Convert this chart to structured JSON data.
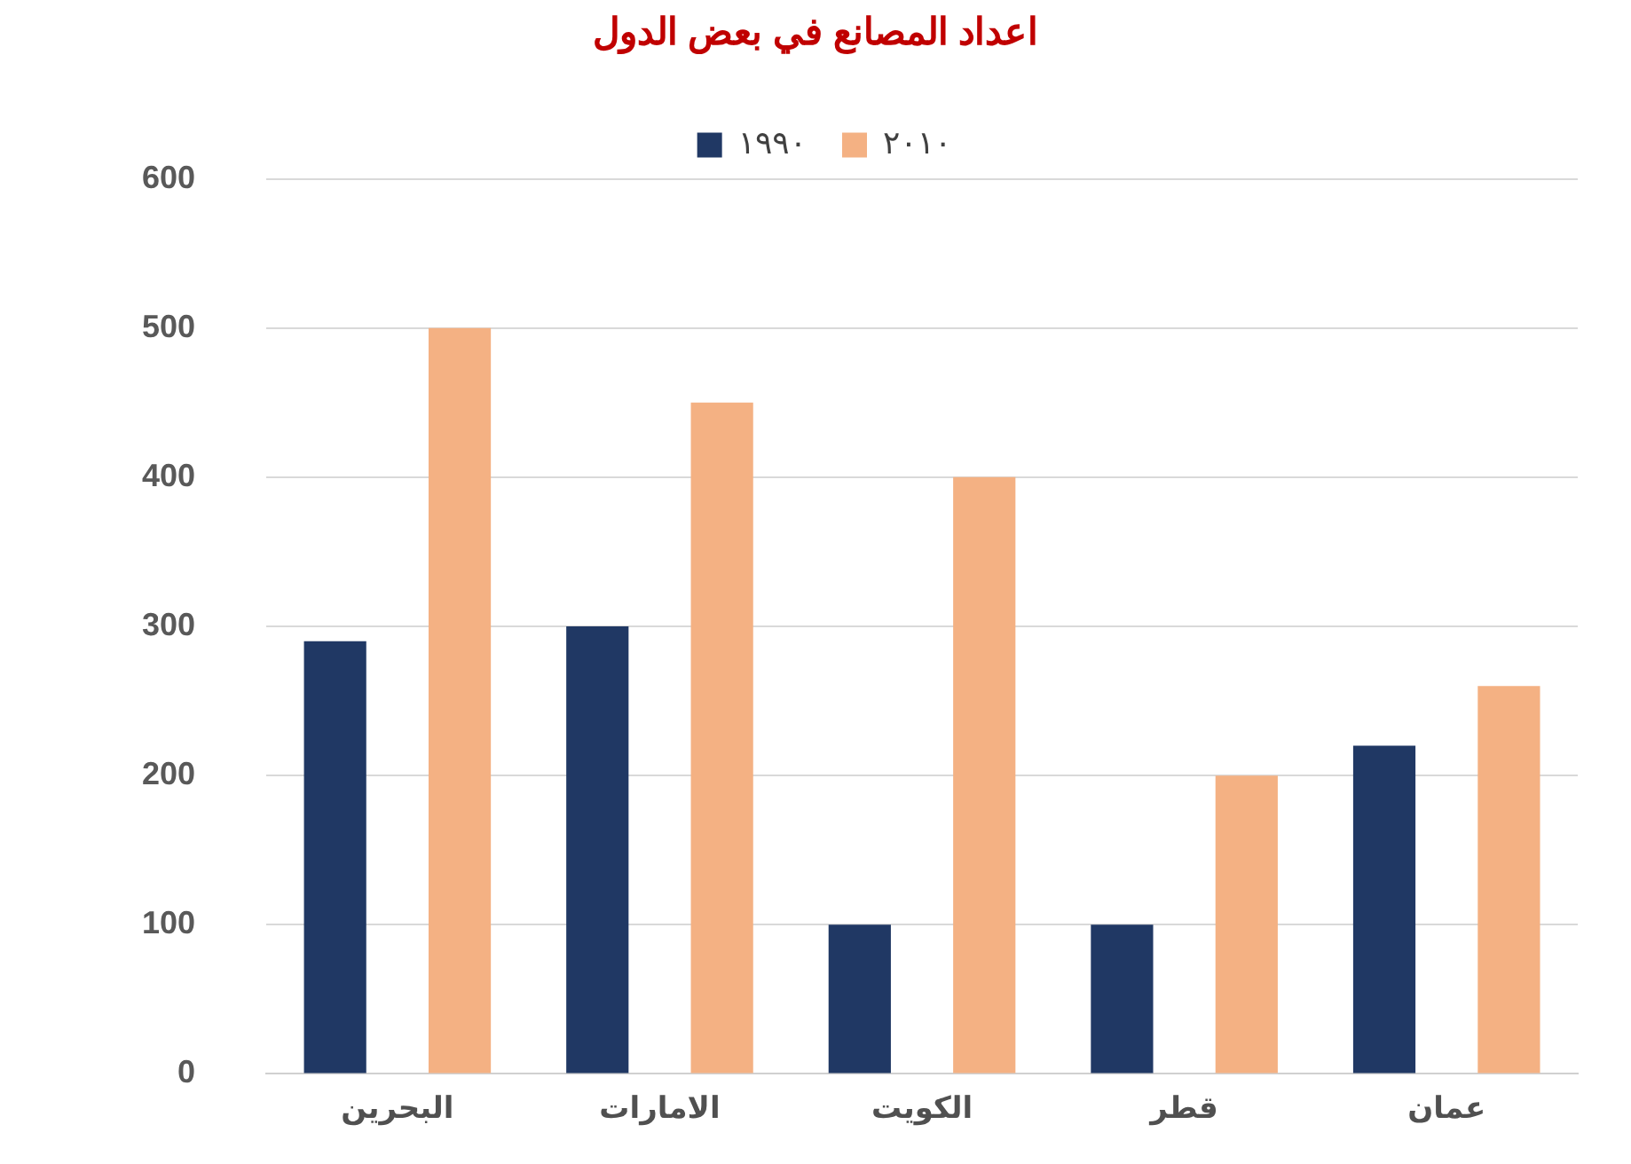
{
  "chart_data": {
    "type": "bar",
    "title": "اعداد المصانع في بعض الدول",
    "categories": [
      "البحرين",
      "الامارات",
      "الكويت",
      "قطر",
      "عمان"
    ],
    "series": [
      {
        "name": "١٩٩٠",
        "color": "#203864",
        "values": [
          290,
          300,
          100,
          100,
          220
        ]
      },
      {
        "name": "٢٠١٠",
        "color": "#f4b183",
        "values": [
          500,
          450,
          400,
          200,
          260
        ]
      }
    ],
    "ylim": [
      0,
      600
    ],
    "yticks": [
      0,
      100,
      200,
      300,
      400,
      500,
      600
    ],
    "grid": "y",
    "legend": "top"
  }
}
